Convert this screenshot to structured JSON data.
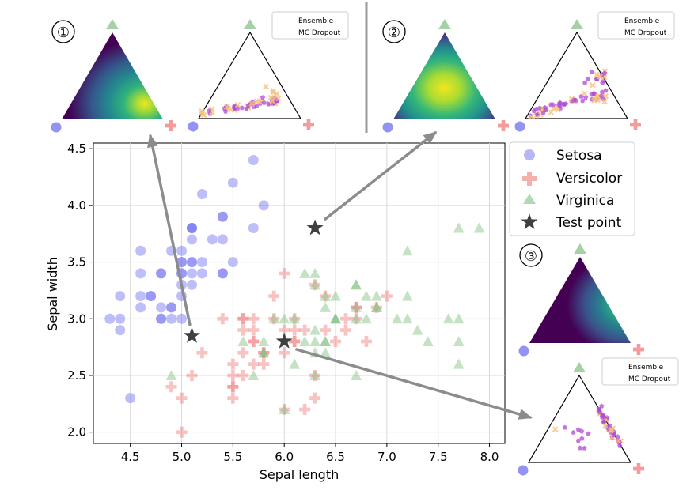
{
  "chart_data": {
    "type": "scatter",
    "xlabel": "Sepal length",
    "ylabel": "Sepal width",
    "xlim": [
      4.14,
      8.15
    ],
    "ylim": [
      1.9,
      4.55
    ],
    "xticks": [
      "4.5",
      "5.0",
      "5.5",
      "6.0",
      "6.5",
      "7.0",
      "7.5",
      "8.0"
    ],
    "yticks": [
      "2.0",
      "2.5",
      "3.0",
      "3.5",
      "4.0",
      "4.5"
    ],
    "grid": true,
    "legend": {
      "position": "top-right",
      "entries": [
        {
          "label": "Setosa",
          "marker": "circle",
          "color": "#6f6ff0"
        },
        {
          "label": "Versicolor",
          "marker": "plus",
          "color": "#f07a7a"
        },
        {
          "label": "Virginica",
          "marker": "triangle",
          "color": "#7fbf7f"
        },
        {
          "label": "Test point",
          "marker": "star",
          "color": "#404040"
        }
      ]
    },
    "series": [
      {
        "name": "Setosa",
        "points": [
          [
            5.1,
            3.5
          ],
          [
            4.9,
            3.0
          ],
          [
            4.7,
            3.2
          ],
          [
            4.6,
            3.1
          ],
          [
            5.0,
            3.6
          ],
          [
            5.4,
            3.9
          ],
          [
            4.6,
            3.4
          ],
          [
            5.0,
            3.4
          ],
          [
            4.4,
            2.9
          ],
          [
            4.9,
            3.1
          ],
          [
            5.4,
            3.7
          ],
          [
            4.8,
            3.4
          ],
          [
            4.8,
            3.0
          ],
          [
            4.3,
            3.0
          ],
          [
            5.8,
            4.0
          ],
          [
            5.7,
            4.4
          ],
          [
            5.4,
            3.9
          ],
          [
            5.1,
            3.5
          ],
          [
            5.7,
            3.8
          ],
          [
            5.1,
            3.8
          ],
          [
            5.4,
            3.4
          ],
          [
            5.1,
            3.7
          ],
          [
            4.6,
            3.6
          ],
          [
            5.1,
            3.3
          ],
          [
            4.8,
            3.4
          ],
          [
            5.0,
            3.0
          ],
          [
            5.0,
            3.4
          ],
          [
            5.2,
            3.5
          ],
          [
            5.2,
            3.4
          ],
          [
            4.7,
            3.2
          ],
          [
            4.8,
            3.1
          ],
          [
            5.4,
            3.4
          ],
          [
            5.2,
            4.1
          ],
          [
            5.5,
            4.2
          ],
          [
            4.9,
            3.1
          ],
          [
            5.0,
            3.2
          ],
          [
            5.5,
            3.5
          ],
          [
            4.9,
            3.6
          ],
          [
            4.4,
            3.0
          ],
          [
            5.1,
            3.4
          ],
          [
            5.0,
            3.5
          ],
          [
            4.5,
            2.3
          ],
          [
            4.4,
            3.2
          ],
          [
            5.0,
            3.5
          ],
          [
            5.1,
            3.8
          ],
          [
            4.8,
            3.0
          ],
          [
            5.1,
            3.8
          ],
          [
            4.6,
            3.2
          ],
          [
            5.3,
            3.7
          ],
          [
            5.0,
            3.3
          ]
        ]
      },
      {
        "name": "Versicolor",
        "points": [
          [
            7.0,
            3.2
          ],
          [
            6.4,
            3.2
          ],
          [
            6.9,
            3.1
          ],
          [
            5.5,
            2.3
          ],
          [
            6.5,
            2.8
          ],
          [
            5.7,
            2.8
          ],
          [
            6.3,
            3.3
          ],
          [
            4.9,
            2.4
          ],
          [
            6.6,
            2.9
          ],
          [
            5.2,
            2.7
          ],
          [
            5.0,
            2.0
          ],
          [
            5.9,
            3.0
          ],
          [
            6.0,
            2.2
          ],
          [
            6.1,
            2.9
          ],
          [
            5.6,
            2.9
          ],
          [
            6.7,
            3.1
          ],
          [
            5.6,
            3.0
          ],
          [
            5.8,
            2.7
          ],
          [
            6.2,
            2.2
          ],
          [
            5.6,
            2.5
          ],
          [
            5.9,
            3.2
          ],
          [
            6.1,
            2.8
          ],
          [
            6.3,
            2.5
          ],
          [
            6.1,
            2.8
          ],
          [
            6.4,
            2.9
          ],
          [
            6.6,
            3.0
          ],
          [
            6.8,
            2.8
          ],
          [
            6.7,
            3.0
          ],
          [
            6.0,
            2.9
          ],
          [
            5.7,
            2.6
          ],
          [
            5.5,
            2.4
          ],
          [
            5.5,
            2.4
          ],
          [
            5.8,
            2.7
          ],
          [
            6.0,
            2.7
          ],
          [
            5.4,
            3.0
          ],
          [
            6.0,
            3.4
          ],
          [
            6.7,
            3.1
          ],
          [
            6.3,
            2.3
          ],
          [
            5.6,
            3.0
          ],
          [
            5.5,
            2.5
          ],
          [
            5.5,
            2.6
          ],
          [
            6.1,
            3.0
          ],
          [
            5.8,
            2.6
          ],
          [
            5.0,
            2.3
          ],
          [
            5.6,
            2.7
          ],
          [
            5.7,
            3.0
          ],
          [
            5.7,
            2.9
          ],
          [
            6.2,
            2.9
          ],
          [
            5.1,
            2.5
          ],
          [
            5.7,
            2.8
          ]
        ]
      },
      {
        "name": "Virginica",
        "points": [
          [
            6.3,
            3.3
          ],
          [
            5.8,
            2.7
          ],
          [
            7.1,
            3.0
          ],
          [
            6.3,
            2.9
          ],
          [
            6.5,
            3.0
          ],
          [
            7.6,
            3.0
          ],
          [
            4.9,
            2.5
          ],
          [
            7.3,
            2.9
          ],
          [
            6.7,
            2.5
          ],
          [
            7.2,
            3.6
          ],
          [
            6.5,
            3.2
          ],
          [
            6.4,
            2.7
          ],
          [
            6.8,
            3.0
          ],
          [
            5.7,
            2.5
          ],
          [
            5.8,
            2.8
          ],
          [
            6.4,
            3.2
          ],
          [
            6.5,
            3.0
          ],
          [
            7.7,
            3.8
          ],
          [
            7.7,
            2.6
          ],
          [
            6.0,
            2.2
          ],
          [
            6.9,
            3.2
          ],
          [
            5.6,
            2.8
          ],
          [
            7.7,
            2.8
          ],
          [
            6.3,
            2.7
          ],
          [
            6.7,
            3.3
          ],
          [
            7.2,
            3.2
          ],
          [
            6.2,
            2.8
          ],
          [
            6.1,
            3.0
          ],
          [
            6.4,
            2.8
          ],
          [
            7.2,
            3.0
          ],
          [
            7.4,
            2.8
          ],
          [
            7.9,
            3.8
          ],
          [
            6.4,
            2.8
          ],
          [
            6.3,
            2.8
          ],
          [
            6.1,
            2.6
          ],
          [
            7.7,
            3.0
          ],
          [
            6.3,
            3.4
          ],
          [
            6.4,
            3.1
          ],
          [
            6.0,
            3.0
          ],
          [
            6.9,
            3.1
          ],
          [
            6.7,
            3.1
          ],
          [
            6.9,
            3.1
          ],
          [
            5.8,
            2.7
          ],
          [
            6.8,
            3.2
          ],
          [
            6.7,
            3.3
          ],
          [
            6.7,
            3.0
          ],
          [
            6.3,
            2.5
          ],
          [
            6.5,
            3.0
          ],
          [
            6.2,
            3.4
          ],
          [
            5.9,
            3.0
          ]
        ]
      },
      {
        "name": "Test point",
        "points": [
          [
            5.1,
            2.85
          ],
          [
            6.3,
            3.8
          ],
          [
            6.0,
            2.8
          ]
        ]
      }
    ],
    "panels": [
      {
        "label": "①",
        "kind": "density",
        "peak": "lower-right"
      },
      {
        "label": "②",
        "kind": "density",
        "peak": "center"
      },
      {
        "label": "③",
        "kind": "density",
        "peak": "right-edge"
      }
    ],
    "scatter_legend": [
      "Ensemble",
      "MC Dropout"
    ],
    "colors": {
      "ensemble": "#f7c07a",
      "mc_dropout": "#b04ad6",
      "arrow": "#8c8c8c",
      "setosa": "#6f6ff0",
      "versicolor": "#f07a7a",
      "virginica": "#7fbf7f",
      "test": "#404040"
    }
  }
}
